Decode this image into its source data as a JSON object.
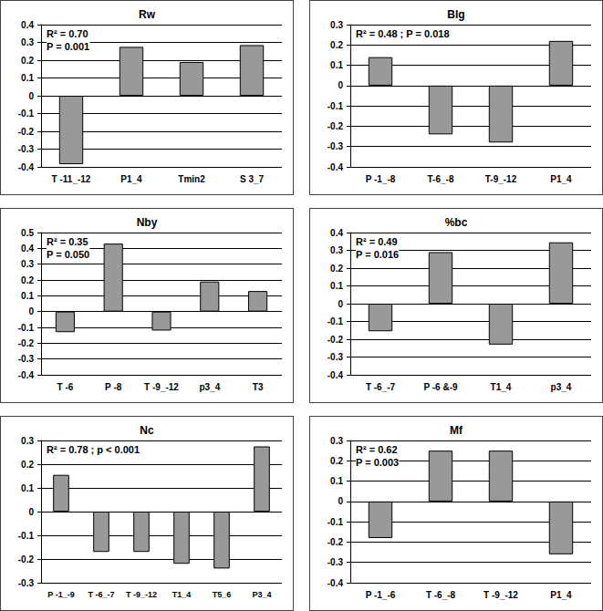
{
  "chart_data": [
    {
      "type": "bar",
      "title": "Rw",
      "annotations": [
        "R² = 0.70",
        "P = 0.001"
      ],
      "categories": [
        "T -11_-12",
        "P1_4",
        "Tmin2",
        "S 3_7"
      ],
      "values": [
        -0.385,
        0.275,
        0.19,
        0.285
      ],
      "color": "#999999",
      "ylim": [
        -0.4,
        0.4
      ],
      "yticks": [
        -0.4,
        -0.3,
        -0.2,
        -0.1,
        0,
        0.1,
        0.2,
        0.3,
        0.4
      ],
      "grid": true
    },
    {
      "type": "bar",
      "title": "Blg",
      "annotations": [
        "R² = 0.48 ; P = 0.018"
      ],
      "categories": [
        "P -1_-8",
        "T-6_-8",
        "T-9_-12",
        "P1_4"
      ],
      "values": [
        0.14,
        -0.24,
        -0.28,
        0.22
      ],
      "color": "#999999",
      "ylim": [
        -0.4,
        0.3
      ],
      "yticks": [
        -0.4,
        -0.3,
        -0.2,
        -0.1,
        0,
        0.1,
        0.2,
        0.3
      ],
      "grid": true
    },
    {
      "type": "bar",
      "title": "Nby",
      "annotations": [
        "R² = 0.35",
        "P = 0.050"
      ],
      "categories": [
        "T -6",
        "P -8",
        "T -9_-12",
        "p3_4",
        "T3"
      ],
      "values": [
        -0.13,
        0.43,
        -0.12,
        0.19,
        0.13
      ],
      "color": "#999999",
      "ylim": [
        -0.4,
        0.5
      ],
      "yticks": [
        -0.4,
        -0.3,
        -0.2,
        -0.1,
        0,
        0.1,
        0.2,
        0.3,
        0.4,
        0.5
      ],
      "grid": true
    },
    {
      "type": "bar",
      "title": "%bc",
      "annotations": [
        "R² = 0.49",
        "P = 0.016"
      ],
      "categories": [
        "T -6_-7",
        "P -6 &-9",
        "T1_4",
        "p3_4"
      ],
      "values": [
        -0.155,
        0.29,
        -0.23,
        0.345
      ],
      "color": "#999999",
      "ylim": [
        -0.4,
        0.4
      ],
      "yticks": [
        -0.4,
        -0.3,
        -0.2,
        -0.1,
        0,
        0.1,
        0.2,
        0.3,
        0.4
      ],
      "grid": true
    },
    {
      "type": "bar",
      "title": "Nc",
      "annotations": [
        "R² = 0.78 ; p < 0.001"
      ],
      "categories": [
        "P -1_-9",
        "T -6_-7",
        "T -9_-12",
        "T1_4",
        "T5_6",
        "P3_4"
      ],
      "values": [
        0.155,
        -0.17,
        -0.17,
        -0.22,
        -0.24,
        0.275
      ],
      "color": "#999999",
      "ylim": [
        -0.3,
        0.3
      ],
      "yticks": [
        -0.3,
        -0.2,
        -0.1,
        0,
        0.1,
        0.2,
        0.3
      ],
      "grid": true
    },
    {
      "type": "bar",
      "title": "Mf",
      "annotations": [
        "R² = 0.62",
        "P = 0.003"
      ],
      "categories": [
        "P -1_-6",
        "T -6_-8",
        "T -9_-12",
        "P1_4"
      ],
      "values": [
        -0.18,
        0.25,
        0.25,
        -0.26
      ],
      "color": "#999999",
      "ylim": [
        -0.4,
        0.3
      ],
      "yticks": [
        -0.4,
        -0.3,
        -0.2,
        -0.1,
        0,
        0.1,
        0.2,
        0.3
      ],
      "grid": true
    }
  ]
}
